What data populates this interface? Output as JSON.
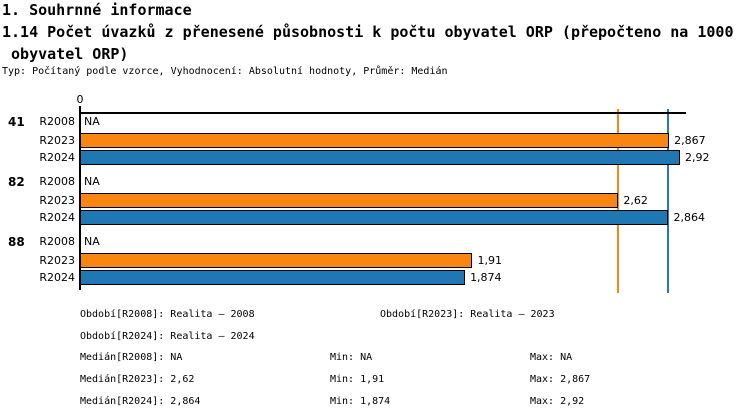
{
  "header": {
    "section_title": "1. Souhrnné informace",
    "indicator_title_line1": "1.14 Počet úvazků z přenesené působnosti k počtu obyvatel ORP (přepočteno na 1000",
    "indicator_title_line2": " obyvatel ORP)",
    "meta": "Typ: Počítaný podle vzorce, Vyhodnocení: Absolutní hodnoty, Průměr: Medián"
  },
  "chart_data": {
    "type": "bar",
    "orientation": "horizontal",
    "axis_zero_label": "0",
    "value_axis_min": 0,
    "value_axis_max": 2.92,
    "na_text": "NA",
    "series_colors": {
      "R2008": null,
      "R2023": "#FA8612",
      "R2024": "#1F77B4"
    },
    "groups": [
      {
        "label": "41",
        "rows": [
          {
            "series": "R2008",
            "value": null,
            "display": "NA"
          },
          {
            "series": "R2023",
            "value": 2.867,
            "display": "2,867"
          },
          {
            "series": "R2024",
            "value": 2.92,
            "display": "2,92"
          }
        ]
      },
      {
        "label": "82",
        "rows": [
          {
            "series": "R2008",
            "value": null,
            "display": "NA"
          },
          {
            "series": "R2023",
            "value": 2.62,
            "display": "2,62"
          },
          {
            "series": "R2024",
            "value": 2.864,
            "display": "2,864"
          }
        ]
      },
      {
        "label": "88",
        "rows": [
          {
            "series": "R2008",
            "value": null,
            "display": "NA"
          },
          {
            "series": "R2023",
            "value": 1.91,
            "display": "1,91"
          },
          {
            "series": "R2024",
            "value": 1.874,
            "display": "1,874"
          }
        ]
      }
    ],
    "reference_lines": [
      {
        "name": "median-R2023",
        "value": 2.62,
        "color": "#FA8612"
      },
      {
        "name": "median-R2024",
        "value": 2.864,
        "color": "#2478BE"
      }
    ]
  },
  "footer": {
    "rows": [
      {
        "cells": [
          {
            "col": "a",
            "text": "Období[R2008]: Realita – 2008"
          },
          {
            "col": "p2",
            "text": "Období[R2023]: Realita – 2023"
          }
        ]
      },
      {
        "cells": [
          {
            "col": "a",
            "text": "Období[R2024]: Realita – 2024"
          }
        ]
      },
      {
        "cells": [
          {
            "col": "a",
            "text": "Medián[R2008]: NA"
          },
          {
            "col": "b",
            "text": "Min: NA"
          },
          {
            "col": "c",
            "text": "Max: NA"
          }
        ]
      },
      {
        "cells": [
          {
            "col": "a",
            "text": "Medián[R2023]: 2,62"
          },
          {
            "col": "b",
            "text": "Min: 1,91"
          },
          {
            "col": "c",
            "text": "Max: 2,867"
          }
        ]
      },
      {
        "cells": [
          {
            "col": "a",
            "text": "Medián[R2024]: 2,864"
          },
          {
            "col": "b",
            "text": "Min: 1,874"
          },
          {
            "col": "c",
            "text": "Max: 2,92"
          }
        ]
      }
    ]
  }
}
